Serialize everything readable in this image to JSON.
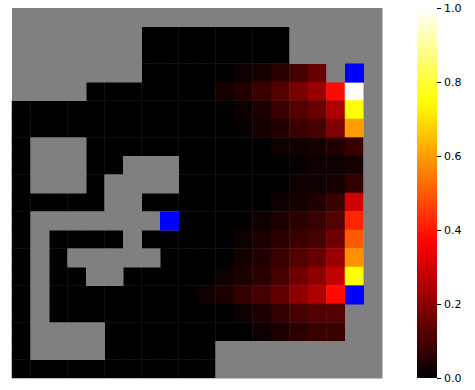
{
  "chart_data": {
    "type": "heatmap",
    "tick_labels": false,
    "cells": [
      [
        null,
        null,
        null,
        null,
        null,
        null,
        null,
        null,
        null,
        null,
        null,
        null,
        null,
        null,
        null,
        null,
        null,
        null,
        null,
        null
      ],
      [
        null,
        null,
        null,
        null,
        null,
        null,
        null,
        0,
        0,
        0,
        0,
        0,
        0,
        0,
        0,
        null,
        null,
        null,
        null,
        null
      ],
      [
        null,
        null,
        null,
        null,
        null,
        null,
        null,
        0,
        0,
        0,
        0,
        0,
        0,
        0,
        0,
        null,
        null,
        null,
        null,
        null
      ],
      [
        null,
        null,
        null,
        null,
        null,
        null,
        null,
        0,
        0,
        0,
        0,
        0,
        0.02,
        0.03,
        0.06,
        0.1,
        0.15,
        null,
        null,
        null
      ],
      [
        null,
        null,
        null,
        null,
        0,
        0,
        0,
        0,
        0,
        0,
        0,
        0.03,
        0.05,
        0.08,
        0.12,
        0.17,
        0.22,
        0.38,
        1.0,
        null
      ],
      [
        0,
        0,
        0,
        0,
        0,
        0,
        0,
        0,
        0,
        0,
        0,
        0,
        0.02,
        0.04,
        0.08,
        0.12,
        0.15,
        0.25,
        0.75,
        null
      ],
      [
        0,
        0,
        0,
        0,
        0,
        0,
        0,
        0,
        0,
        0,
        0,
        0,
        0.01,
        0.03,
        0.05,
        0.08,
        0.1,
        0.18,
        0.6,
        null
      ],
      [
        0,
        null,
        null,
        null,
        0,
        0,
        0,
        0,
        0,
        0,
        0,
        0,
        0,
        0,
        0.02,
        0.02,
        0.03,
        0.05,
        0.08,
        null
      ],
      [
        0,
        null,
        null,
        null,
        0,
        0,
        null,
        null,
        null,
        0,
        0,
        0,
        0,
        0,
        0,
        0.01,
        0.02,
        0.02,
        0.03,
        null
      ],
      [
        0,
        null,
        null,
        null,
        0,
        null,
        null,
        null,
        null,
        0,
        0,
        0,
        0,
        0,
        0,
        0.02,
        0.02,
        0.03,
        0.07,
        null
      ],
      [
        0,
        0,
        0,
        0,
        0,
        null,
        null,
        0,
        0,
        0,
        0,
        0,
        0,
        0,
        0.02,
        0.03,
        0.05,
        0.08,
        0.3,
        null
      ],
      [
        0,
        null,
        null,
        null,
        null,
        null,
        null,
        null,
        null,
        0,
        0,
        0,
        0,
        0.02,
        0.04,
        0.06,
        0.08,
        0.12,
        0.42,
        null
      ],
      [
        0,
        null,
        0,
        0,
        0,
        0,
        null,
        0,
        0,
        0,
        0,
        0,
        0.02,
        0.04,
        0.06,
        0.08,
        0.1,
        0.16,
        0.5,
        null
      ],
      [
        0,
        null,
        0,
        null,
        null,
        null,
        null,
        null,
        0,
        0,
        0,
        0,
        0.03,
        0.05,
        0.08,
        0.12,
        0.15,
        0.22,
        0.58,
        null
      ],
      [
        0,
        null,
        0,
        0,
        null,
        null,
        0,
        0,
        0,
        0,
        0,
        0.02,
        0.04,
        0.06,
        0.1,
        0.16,
        0.2,
        0.28,
        0.75,
        null
      ],
      [
        0,
        null,
        0,
        0,
        0,
        0,
        0,
        0,
        0,
        0,
        0.02,
        0.04,
        0.07,
        0.1,
        0.14,
        0.2,
        0.25,
        0.38,
        null,
        null
      ],
      [
        0,
        null,
        0,
        0,
        0,
        0,
        0,
        0,
        0,
        0,
        0,
        0,
        0.02,
        0.04,
        0.07,
        0.1,
        0.12,
        0.12,
        null,
        null
      ],
      [
        0,
        null,
        null,
        null,
        null,
        0,
        0,
        0,
        0,
        0,
        0,
        0,
        0,
        0.02,
        0.04,
        0.06,
        0.08,
        0.08,
        null,
        null
      ],
      [
        0,
        null,
        null,
        null,
        null,
        0,
        0,
        0,
        0,
        0,
        0,
        null,
        null,
        null,
        null,
        null,
        null,
        null,
        null,
        null
      ],
      [
        0,
        0,
        0,
        0,
        0,
        0,
        0,
        0,
        0,
        0,
        0,
        null,
        null,
        null,
        null,
        null,
        null,
        null,
        null,
        null
      ]
    ],
    "markers": {
      "cells": [
        [
          3,
          18
        ],
        [
          11,
          8
        ],
        [
          15,
          18
        ]
      ],
      "color": "#0000ff"
    },
    "colorbar": {
      "range": [
        0,
        1
      ],
      "ticks": [
        {
          "value": 0,
          "label": "0.0"
        },
        {
          "value": 0.2,
          "label": "0.2"
        },
        {
          "value": 0.4,
          "label": "0.4"
        },
        {
          "value": 0.6,
          "label": "0.6"
        },
        {
          "value": 0.8,
          "label": "0.8"
        },
        {
          "value": 1,
          "label": "1.0"
        }
      ]
    }
  }
}
